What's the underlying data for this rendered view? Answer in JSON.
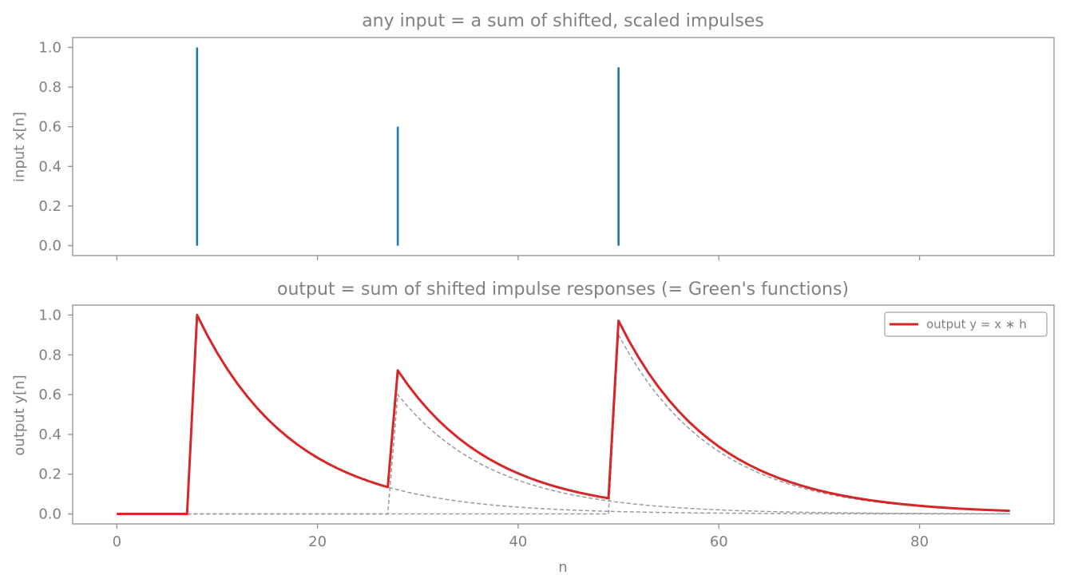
{
  "chart_data": [
    {
      "type": "stem",
      "title": "any input = a sum of shifted, scaled impulses",
      "ylabel": "input  x[n]",
      "xlabel": "",
      "xlim": [
        -4.4,
        93.4
      ],
      "ylim": [
        -0.05,
        1.05
      ],
      "yticks": [
        "0.0",
        "0.2",
        "0.4",
        "0.6",
        "0.8",
        "1.0"
      ],
      "ytick_values": [
        0,
        0.2,
        0.4,
        0.6,
        0.8,
        1.0
      ],
      "xtick_values": [
        0,
        20,
        40,
        60,
        80
      ],
      "show_xtick_labels": false,
      "grid": false,
      "series": [
        {
          "x": [
            8,
            28,
            50
          ],
          "y": [
            1.0,
            0.6,
            0.9
          ],
          "color": "#1f77b4"
        }
      ]
    },
    {
      "type": "line",
      "title": "output = sum of shifted impulse responses (= Green's functions)",
      "ylabel": "output  y[n]",
      "xlabel": "n",
      "xlim": [
        -4.4,
        93.4
      ],
      "ylim": [
        -0.05,
        1.05
      ],
      "yticks": [
        "0.0",
        "0.2",
        "0.4",
        "0.6",
        "0.8",
        "1.0"
      ],
      "ytick_values": [
        0,
        0.2,
        0.4,
        0.6,
        0.8,
        1.0
      ],
      "xticks": [
        "0",
        "20",
        "40",
        "60",
        "80"
      ],
      "xtick_values": [
        0,
        20,
        40,
        60,
        80
      ],
      "grid": false,
      "legend_position": "top-right",
      "n_range": [
        0,
        89
      ],
      "decay_factor": 0.9,
      "impulses": [
        {
          "n": 8,
          "amplitude": 1.0
        },
        {
          "n": 28,
          "amplitude": 0.6
        },
        {
          "n": 50,
          "amplitude": 0.9
        }
      ],
      "series": [
        {
          "name": "output  y = x ∗ h",
          "kind": "sum",
          "color": "#d62728"
        },
        {
          "kind": "component",
          "impulse_index": 0,
          "color": "#999999"
        },
        {
          "kind": "component",
          "impulse_index": 1,
          "color": "#999999"
        },
        {
          "kind": "component",
          "impulse_index": 2,
          "color": "#999999"
        }
      ]
    }
  ]
}
